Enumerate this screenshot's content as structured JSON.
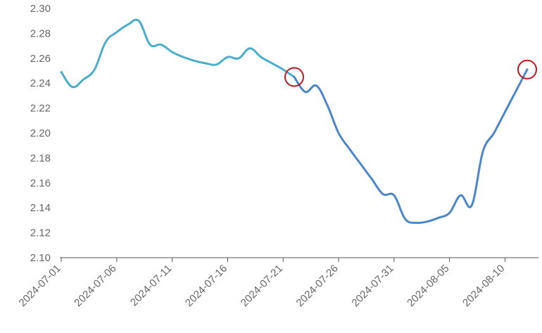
{
  "chart_data": {
    "type": "line",
    "title": "",
    "xlabel": "",
    "ylabel": "",
    "ylim": [
      2.1,
      2.3
    ],
    "yticks": [
      "2.10",
      "2.12",
      "2.14",
      "2.16",
      "2.18",
      "2.20",
      "2.22",
      "2.24",
      "2.26",
      "2.28",
      "2.30"
    ],
    "xticks": [
      "2024-07-01",
      "2024-07-06",
      "2024-07-11",
      "2024-07-16",
      "2024-07-21",
      "2024-07-26",
      "2024-07-31",
      "2024-08-05",
      "2024-08-10"
    ],
    "grid": false,
    "legend": "none",
    "colors": {
      "segment_1": "#4badcc",
      "segment_2": "#4a86c8",
      "marker": "#c0151b",
      "axis": "#555555",
      "text": "#666666"
    },
    "series": [
      {
        "x": [
          "2024-07-01",
          "2024-07-02",
          "2024-07-03",
          "2024-07-04",
          "2024-07-05",
          "2024-07-06",
          "2024-07-07",
          "2024-07-08",
          "2024-07-09",
          "2024-07-10",
          "2024-07-11",
          "2024-07-12",
          "2024-07-13",
          "2024-07-14",
          "2024-07-15",
          "2024-07-16",
          "2024-07-17",
          "2024-07-18",
          "2024-07-19",
          "2024-07-20",
          "2024-07-21",
          "2024-07-22",
          "2024-07-23",
          "2024-07-24",
          "2024-07-25",
          "2024-07-26",
          "2024-07-27",
          "2024-07-28",
          "2024-07-29",
          "2024-07-30",
          "2024-07-31",
          "2024-08-01",
          "2024-08-02",
          "2024-08-03",
          "2024-08-04",
          "2024-08-05",
          "2024-08-06",
          "2024-08-07",
          "2024-08-08",
          "2024-08-09",
          "2024-08-10",
          "2024-08-11",
          "2024-08-12"
        ],
        "values": [
          2.249,
          2.237,
          2.243,
          2.251,
          2.273,
          2.281,
          2.287,
          2.29,
          2.271,
          2.271,
          2.265,
          2.261,
          2.258,
          2.256,
          2.255,
          2.261,
          2.26,
          2.268,
          2.261,
          2.256,
          2.251,
          2.245,
          2.233,
          2.238,
          2.222,
          2.2,
          2.187,
          2.175,
          2.163,
          2.151,
          2.15,
          2.131,
          2.128,
          2.129,
          2.132,
          2.136,
          2.15,
          2.142,
          2.185,
          2.2,
          2.217,
          2.234,
          2.251
        ]
      }
    ],
    "segment_split": "2024-07-22",
    "highlight_points": [
      {
        "x": "2024-07-22",
        "y": 2.245
      },
      {
        "x": "2024-08-12",
        "y": 2.251
      }
    ]
  }
}
